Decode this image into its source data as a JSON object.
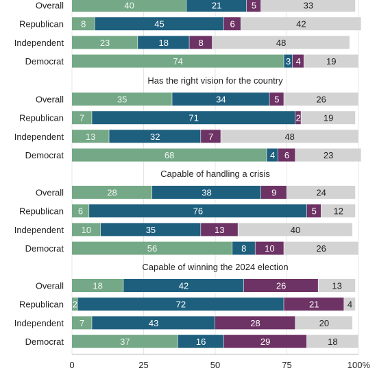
{
  "chart_data": {
    "type": "bar",
    "orientation": "horizontal",
    "stacked": true,
    "x_ticks": [
      "0",
      "25",
      "50",
      "75",
      "100%"
    ],
    "xlim": [
      0,
      100
    ],
    "categories": [
      "Overall",
      "Republican",
      "Independent",
      "Democrat"
    ],
    "colors": [
      "#74a886",
      "#1e5f7e",
      "#6e3365",
      "#d3d3d3"
    ],
    "panels": [
      {
        "title": "",
        "rows": [
          {
            "category": "Overall",
            "values": [
              40,
              21,
              5,
              33
            ]
          },
          {
            "category": "Republican",
            "values": [
              8,
              45,
              6,
              42
            ]
          },
          {
            "category": "Independent",
            "values": [
              23,
              18,
              8,
              48
            ]
          },
          {
            "category": "Democrat",
            "values": [
              74,
              3,
              4,
              19
            ]
          }
        ]
      },
      {
        "title": "Has the right vision for the country",
        "rows": [
          {
            "category": "Overall",
            "values": [
              35,
              34,
              5,
              26
            ]
          },
          {
            "category": "Republican",
            "values": [
              7,
              71,
              2,
              19
            ]
          },
          {
            "category": "Independent",
            "values": [
              13,
              32,
              7,
              48
            ]
          },
          {
            "category": "Democrat",
            "values": [
              68,
              4,
              6,
              23
            ]
          }
        ]
      },
      {
        "title": "Capable of handling a crisis",
        "rows": [
          {
            "category": "Overall",
            "values": [
              28,
              38,
              9,
              24
            ]
          },
          {
            "category": "Republican",
            "values": [
              6,
              76,
              5,
              12
            ]
          },
          {
            "category": "Independent",
            "values": [
              10,
              35,
              13,
              40
            ]
          },
          {
            "category": "Democrat",
            "values": [
              56,
              8,
              10,
              26
            ]
          }
        ]
      },
      {
        "title": "Capable of winning the 2024 election",
        "rows": [
          {
            "category": "Overall",
            "values": [
              18,
              42,
              26,
              13
            ]
          },
          {
            "category": "Republican",
            "values": [
              2,
              72,
              21,
              4
            ]
          },
          {
            "category": "Independent",
            "values": [
              7,
              43,
              28,
              20
            ]
          },
          {
            "category": "Democrat",
            "values": [
              37,
              16,
              29,
              18
            ]
          }
        ]
      }
    ]
  }
}
